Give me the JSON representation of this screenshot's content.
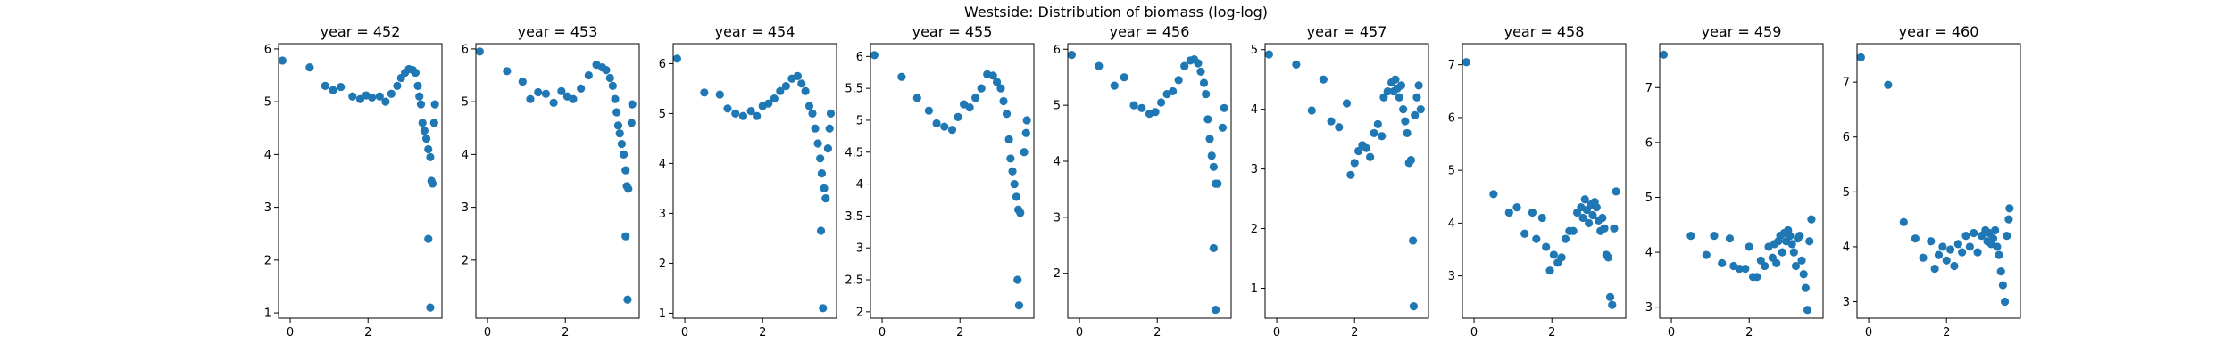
{
  "figure": {
    "title": "Westside: Distribution of biomass (log-log)"
  },
  "style": {
    "marker_color": "#1f77b4",
    "axis_color": "#000000",
    "background": "#ffffff"
  },
  "chart_data": [
    {
      "type": "scatter",
      "title": "year = 452",
      "xlim": [
        -0.3,
        3.9
      ],
      "ylim": [
        0.9,
        6.1
      ],
      "xticks": [
        0,
        2
      ],
      "yticks": [
        1,
        2,
        3,
        4,
        5,
        6
      ],
      "points": [
        [
          -0.2,
          5.78
        ],
        [
          0.5,
          5.65
        ],
        [
          0.9,
          5.3
        ],
        [
          1.1,
          5.22
        ],
        [
          1.3,
          5.28
        ],
        [
          1.6,
          5.1
        ],
        [
          1.8,
          5.05
        ],
        [
          1.95,
          5.12
        ],
        [
          2.1,
          5.08
        ],
        [
          2.3,
          5.1
        ],
        [
          2.45,
          5.0
        ],
        [
          2.6,
          5.15
        ],
        [
          2.75,
          5.3
        ],
        [
          2.85,
          5.45
        ],
        [
          2.95,
          5.55
        ],
        [
          3.05,
          5.62
        ],
        [
          3.15,
          5.6
        ],
        [
          3.22,
          5.55
        ],
        [
          3.28,
          5.3
        ],
        [
          3.32,
          5.1
        ],
        [
          3.36,
          4.95
        ],
        [
          3.4,
          4.6
        ],
        [
          3.45,
          4.45
        ],
        [
          3.5,
          4.3
        ],
        [
          3.55,
          4.1
        ],
        [
          3.6,
          3.95
        ],
        [
          3.63,
          3.5
        ],
        [
          3.66,
          3.45
        ],
        [
          3.55,
          2.4
        ],
        [
          3.6,
          1.1
        ],
        [
          3.7,
          4.6
        ],
        [
          3.72,
          4.95
        ]
      ]
    },
    {
      "type": "scatter",
      "title": "year = 453",
      "xlim": [
        -0.3,
        3.9
      ],
      "ylim": [
        0.9,
        6.1
      ],
      "xticks": [
        0,
        2
      ],
      "yticks": [
        2,
        3,
        4,
        5,
        6
      ],
      "points": [
        [
          -0.2,
          5.95
        ],
        [
          0.5,
          5.58
        ],
        [
          0.9,
          5.38
        ],
        [
          1.1,
          5.05
        ],
        [
          1.3,
          5.18
        ],
        [
          1.5,
          5.15
        ],
        [
          1.7,
          4.98
        ],
        [
          1.9,
          5.2
        ],
        [
          2.05,
          5.1
        ],
        [
          2.2,
          5.05
        ],
        [
          2.4,
          5.25
        ],
        [
          2.6,
          5.5
        ],
        [
          2.8,
          5.7
        ],
        [
          2.95,
          5.65
        ],
        [
          3.05,
          5.6
        ],
        [
          3.15,
          5.45
        ],
        [
          3.22,
          5.3
        ],
        [
          3.28,
          5.05
        ],
        [
          3.32,
          4.8
        ],
        [
          3.36,
          4.55
        ],
        [
          3.4,
          4.4
        ],
        [
          3.45,
          4.2
        ],
        [
          3.5,
          4.0
        ],
        [
          3.55,
          3.7
        ],
        [
          3.58,
          3.4
        ],
        [
          3.62,
          3.35
        ],
        [
          3.55,
          2.45
        ],
        [
          3.6,
          1.25
        ],
        [
          3.7,
          4.6
        ],
        [
          3.72,
          4.95
        ]
      ]
    },
    {
      "type": "scatter",
      "title": "year = 454",
      "xlim": [
        -0.3,
        3.9
      ],
      "ylim": [
        0.9,
        6.4
      ],
      "xticks": [
        0,
        2
      ],
      "yticks": [
        1,
        2,
        3,
        4,
        5,
        6
      ],
      "points": [
        [
          -0.2,
          6.1
        ],
        [
          0.5,
          5.42
        ],
        [
          0.9,
          5.38
        ],
        [
          1.1,
          5.1
        ],
        [
          1.3,
          5.0
        ],
        [
          1.5,
          4.95
        ],
        [
          1.7,
          5.05
        ],
        [
          1.85,
          4.95
        ],
        [
          2.0,
          5.15
        ],
        [
          2.15,
          5.2
        ],
        [
          2.3,
          5.3
        ],
        [
          2.45,
          5.45
        ],
        [
          2.6,
          5.55
        ],
        [
          2.75,
          5.7
        ],
        [
          2.9,
          5.75
        ],
        [
          3.0,
          5.6
        ],
        [
          3.1,
          5.45
        ],
        [
          3.2,
          5.15
        ],
        [
          3.28,
          5.0
        ],
        [
          3.35,
          4.7
        ],
        [
          3.42,
          4.4
        ],
        [
          3.48,
          4.1
        ],
        [
          3.52,
          3.8
        ],
        [
          3.58,
          3.5
        ],
        [
          3.62,
          3.3
        ],
        [
          3.5,
          2.65
        ],
        [
          3.55,
          1.1
        ],
        [
          3.68,
          4.3
        ],
        [
          3.72,
          4.7
        ],
        [
          3.75,
          5.0
        ]
      ]
    },
    {
      "type": "scatter",
      "title": "year = 455",
      "xlim": [
        -0.3,
        3.9
      ],
      "ylim": [
        1.9,
        6.2
      ],
      "xticks": [
        0,
        2
      ],
      "yticks": [
        2.0,
        2.5,
        3.0,
        3.5,
        4.0,
        4.5,
        5.0,
        5.5,
        6.0
      ],
      "points": [
        [
          -0.2,
          6.02
        ],
        [
          0.5,
          5.68
        ],
        [
          0.9,
          5.35
        ],
        [
          1.2,
          5.15
        ],
        [
          1.4,
          4.95
        ],
        [
          1.6,
          4.9
        ],
        [
          1.8,
          4.85
        ],
        [
          1.95,
          5.05
        ],
        [
          2.1,
          5.25
        ],
        [
          2.25,
          5.2
        ],
        [
          2.4,
          5.35
        ],
        [
          2.55,
          5.5
        ],
        [
          2.7,
          5.72
        ],
        [
          2.85,
          5.7
        ],
        [
          2.95,
          5.6
        ],
        [
          3.05,
          5.5
        ],
        [
          3.12,
          5.3
        ],
        [
          3.2,
          5.1
        ],
        [
          3.26,
          4.7
        ],
        [
          3.3,
          4.4
        ],
        [
          3.35,
          4.2
        ],
        [
          3.4,
          4.0
        ],
        [
          3.45,
          3.8
        ],
        [
          3.5,
          3.6
        ],
        [
          3.55,
          3.55
        ],
        [
          3.48,
          2.5
        ],
        [
          3.52,
          2.1
        ],
        [
          3.65,
          4.5
        ],
        [
          3.7,
          4.8
        ],
        [
          3.72,
          5.0
        ]
      ]
    },
    {
      "type": "scatter",
      "title": "year = 456",
      "xlim": [
        -0.3,
        3.9
      ],
      "ylim": [
        1.2,
        6.1
      ],
      "xticks": [
        0,
        2
      ],
      "yticks": [
        2,
        3,
        4,
        5,
        6
      ],
      "points": [
        [
          -0.2,
          5.9
        ],
        [
          0.5,
          5.7
        ],
        [
          0.9,
          5.35
        ],
        [
          1.15,
          5.5
        ],
        [
          1.4,
          5.0
        ],
        [
          1.6,
          4.95
        ],
        [
          1.8,
          4.85
        ],
        [
          1.95,
          4.88
        ],
        [
          2.1,
          5.05
        ],
        [
          2.25,
          5.2
        ],
        [
          2.4,
          5.25
        ],
        [
          2.55,
          5.45
        ],
        [
          2.7,
          5.7
        ],
        [
          2.85,
          5.8
        ],
        [
          2.95,
          5.82
        ],
        [
          3.05,
          5.75
        ],
        [
          3.12,
          5.6
        ],
        [
          3.2,
          5.4
        ],
        [
          3.25,
          5.2
        ],
        [
          3.3,
          4.75
        ],
        [
          3.35,
          4.4
        ],
        [
          3.4,
          4.1
        ],
        [
          3.45,
          3.9
        ],
        [
          3.5,
          3.6
        ],
        [
          3.55,
          3.6
        ],
        [
          3.45,
          2.45
        ],
        [
          3.5,
          1.35
        ],
        [
          3.68,
          4.6
        ],
        [
          3.72,
          4.95
        ]
      ]
    },
    {
      "type": "scatter",
      "title": "year = 457",
      "xlim": [
        -0.3,
        3.9
      ],
      "ylim": [
        0.5,
        5.1
      ],
      "xticks": [
        0,
        2
      ],
      "yticks": [
        1,
        2,
        3,
        4,
        5
      ],
      "points": [
        [
          -0.2,
          4.92
        ],
        [
          0.5,
          4.75
        ],
        [
          0.9,
          3.98
        ],
        [
          1.2,
          4.5
        ],
        [
          1.4,
          3.8
        ],
        [
          1.6,
          3.7
        ],
        [
          1.8,
          4.1
        ],
        [
          1.9,
          2.9
        ],
        [
          2.0,
          3.1
        ],
        [
          2.1,
          3.3
        ],
        [
          2.2,
          3.4
        ],
        [
          2.3,
          3.35
        ],
        [
          2.4,
          3.2
        ],
        [
          2.5,
          3.6
        ],
        [
          2.6,
          3.75
        ],
        [
          2.7,
          3.55
        ],
        [
          2.75,
          4.2
        ],
        [
          2.85,
          4.3
        ],
        [
          2.95,
          4.45
        ],
        [
          3.0,
          4.3
        ],
        [
          3.05,
          4.5
        ],
        [
          3.1,
          4.35
        ],
        [
          3.15,
          4.2
        ],
        [
          3.2,
          4.4
        ],
        [
          3.25,
          4.0
        ],
        [
          3.3,
          3.8
        ],
        [
          3.35,
          3.6
        ],
        [
          3.4,
          3.1
        ],
        [
          3.45,
          3.15
        ],
        [
          3.5,
          1.8
        ],
        [
          3.52,
          0.7
        ],
        [
          3.55,
          3.9
        ],
        [
          3.6,
          4.2
        ],
        [
          3.65,
          4.4
        ],
        [
          3.7,
          4.0
        ]
      ]
    },
    {
      "type": "scatter",
      "title": "year = 458",
      "xlim": [
        -0.3,
        3.9
      ],
      "ylim": [
        2.2,
        7.4
      ],
      "xticks": [
        0,
        2
      ],
      "yticks": [
        3,
        4,
        5,
        6,
        7
      ],
      "points": [
        [
          -0.2,
          7.05
        ],
        [
          0.5,
          4.55
        ],
        [
          0.9,
          4.2
        ],
        [
          1.1,
          4.3
        ],
        [
          1.3,
          3.8
        ],
        [
          1.5,
          4.2
        ],
        [
          1.6,
          3.7
        ],
        [
          1.75,
          4.1
        ],
        [
          1.85,
          3.55
        ],
        [
          1.95,
          3.1
        ],
        [
          2.05,
          3.4
        ],
        [
          2.15,
          3.25
        ],
        [
          2.25,
          3.35
        ],
        [
          2.35,
          3.7
        ],
        [
          2.45,
          3.85
        ],
        [
          2.55,
          3.85
        ],
        [
          2.65,
          4.2
        ],
        [
          2.75,
          4.3
        ],
        [
          2.8,
          4.1
        ],
        [
          2.85,
          4.45
        ],
        [
          2.9,
          4.25
        ],
        [
          2.95,
          4.0
        ],
        [
          3.0,
          4.35
        ],
        [
          3.05,
          4.15
        ],
        [
          3.1,
          4.4
        ],
        [
          3.15,
          4.3
        ],
        [
          3.2,
          4.05
        ],
        [
          3.25,
          3.85
        ],
        [
          3.3,
          4.1
        ],
        [
          3.35,
          3.9
        ],
        [
          3.4,
          3.4
        ],
        [
          3.45,
          3.35
        ],
        [
          3.5,
          2.6
        ],
        [
          3.55,
          2.45
        ],
        [
          3.6,
          3.9
        ],
        [
          3.65,
          4.6
        ]
      ]
    },
    {
      "type": "scatter",
      "title": "year = 459",
      "xlim": [
        -0.3,
        3.9
      ],
      "ylim": [
        2.8,
        7.8
      ],
      "xticks": [
        0,
        2
      ],
      "yticks": [
        3,
        4,
        5,
        6,
        7
      ],
      "points": [
        [
          -0.2,
          7.6
        ],
        [
          0.5,
          4.3
        ],
        [
          0.9,
          3.95
        ],
        [
          1.1,
          4.3
        ],
        [
          1.3,
          3.8
        ],
        [
          1.5,
          4.25
        ],
        [
          1.6,
          3.75
        ],
        [
          1.75,
          3.7
        ],
        [
          1.9,
          3.7
        ],
        [
          2.0,
          4.1
        ],
        [
          2.1,
          3.55
        ],
        [
          2.2,
          3.55
        ],
        [
          2.3,
          3.85
        ],
        [
          2.4,
          3.75
        ],
        [
          2.5,
          4.1
        ],
        [
          2.6,
          3.9
        ],
        [
          2.65,
          4.15
        ],
        [
          2.7,
          3.8
        ],
        [
          2.75,
          4.2
        ],
        [
          2.8,
          4.3
        ],
        [
          2.85,
          4.0
        ],
        [
          2.9,
          4.35
        ],
        [
          2.95,
          4.2
        ],
        [
          3.0,
          4.4
        ],
        [
          3.05,
          4.3
        ],
        [
          3.1,
          4.15
        ],
        [
          3.15,
          4.0
        ],
        [
          3.2,
          3.75
        ],
        [
          3.25,
          4.25
        ],
        [
          3.3,
          4.3
        ],
        [
          3.35,
          3.85
        ],
        [
          3.4,
          3.6
        ],
        [
          3.45,
          3.35
        ],
        [
          3.5,
          2.95
        ],
        [
          3.55,
          4.2
        ],
        [
          3.6,
          4.6
        ]
      ]
    },
    {
      "type": "scatter",
      "title": "year = 460",
      "xlim": [
        -0.3,
        3.9
      ],
      "ylim": [
        2.7,
        7.7
      ],
      "xticks": [
        0,
        2
      ],
      "yticks": [
        3,
        4,
        5,
        6,
        7
      ],
      "points": [
        [
          -0.2,
          7.45
        ],
        [
          0.5,
          6.95
        ],
        [
          0.9,
          4.45
        ],
        [
          1.2,
          4.15
        ],
        [
          1.4,
          3.8
        ],
        [
          1.6,
          4.1
        ],
        [
          1.7,
          3.6
        ],
        [
          1.8,
          3.85
        ],
        [
          1.9,
          4.0
        ],
        [
          2.0,
          3.75
        ],
        [
          2.1,
          3.95
        ],
        [
          2.2,
          3.65
        ],
        [
          2.3,
          4.05
        ],
        [
          2.4,
          3.9
        ],
        [
          2.5,
          4.2
        ],
        [
          2.6,
          4.0
        ],
        [
          2.7,
          4.25
        ],
        [
          2.8,
          3.9
        ],
        [
          2.9,
          4.2
        ],
        [
          3.0,
          4.3
        ],
        [
          3.05,
          4.1
        ],
        [
          3.1,
          4.25
        ],
        [
          3.15,
          4.05
        ],
        [
          3.2,
          4.15
        ],
        [
          3.25,
          4.3
        ],
        [
          3.3,
          4.0
        ],
        [
          3.35,
          3.85
        ],
        [
          3.4,
          3.55
        ],
        [
          3.45,
          3.3
        ],
        [
          3.5,
          3.0
        ],
        [
          3.55,
          4.2
        ],
        [
          3.6,
          4.5
        ],
        [
          3.62,
          4.7
        ]
      ]
    }
  ]
}
